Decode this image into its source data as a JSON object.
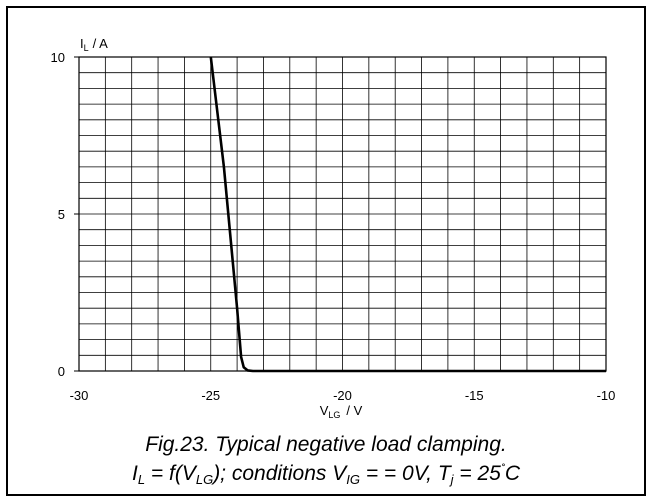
{
  "chart_data": {
    "type": "line",
    "x_ticks": [
      "-30",
      "-25",
      "-20",
      "-15",
      "-10"
    ],
    "y_ticks": [
      "0",
      "5",
      "10"
    ],
    "xlim": [
      -30,
      -10
    ],
    "ylim": [
      0,
      10
    ],
    "grid": true,
    "ylabel": {
      "main": "I",
      "sub": "L",
      "unit": "/ A"
    },
    "xlabel": {
      "main": "V",
      "sub": "LG",
      "unit": "/  V"
    },
    "series": [
      {
        "x": [
          -25.0,
          -24.5,
          -24.0,
          -23.85,
          -23.75,
          -23.6,
          -23.4,
          -23.0,
          -20.0,
          -15.0,
          -10.0
        ],
        "y": [
          10.0,
          6.5,
          2.0,
          0.45,
          0.12,
          0.02,
          0.0,
          0.0,
          0.0,
          0.0,
          0.0
        ]
      }
    ]
  },
  "caption": {
    "line1": "Fig.23.   Typical negative load clamping.",
    "line2": {
      "p1": "I",
      "p1_sub": "L",
      "p2": " = f(V",
      "p2_sub": "LG",
      "p3": "); conditions V",
      "p3_sub": "IG",
      "p4": " = = 0V, T",
      "p4_sub": "j",
      "p5": " = 25",
      "p5_sup": "˚",
      "p6": "C"
    }
  }
}
